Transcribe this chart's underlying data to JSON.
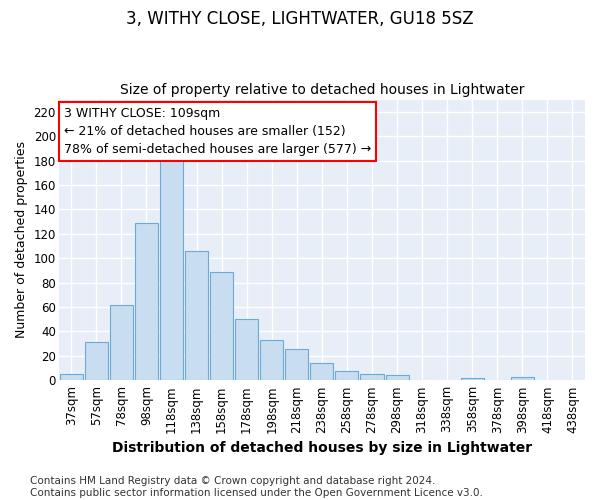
{
  "title": "3, WITHY CLOSE, LIGHTWATER, GU18 5SZ",
  "subtitle": "Size of property relative to detached houses in Lightwater",
  "xlabel": "Distribution of detached houses by size in Lightwater",
  "ylabel": "Number of detached properties",
  "bar_color": "#c9ddf0",
  "bar_edge_color": "#6aaad4",
  "background_color": "#e8eef8",
  "grid_color": "#ffffff",
  "fig_bg_color": "#ffffff",
  "categories": [
    "37sqm",
    "57sqm",
    "78sqm",
    "98sqm",
    "118sqm",
    "138sqm",
    "158sqm",
    "178sqm",
    "198sqm",
    "218sqm",
    "238sqm",
    "258sqm",
    "278sqm",
    "298sqm",
    "318sqm",
    "338sqm",
    "358sqm",
    "378sqm",
    "398sqm",
    "418sqm",
    "438sqm"
  ],
  "values": [
    5,
    31,
    62,
    129,
    181,
    106,
    89,
    50,
    33,
    26,
    14,
    8,
    5,
    4,
    0,
    0,
    2,
    0,
    3,
    0,
    0
  ],
  "annotation_text": "3 WITHY CLOSE: 109sqm\n← 21% of detached houses are smaller (152)\n78% of semi-detached houses are larger (577) →",
  "ylim": [
    0,
    230
  ],
  "yticks": [
    0,
    20,
    40,
    60,
    80,
    100,
    120,
    140,
    160,
    180,
    200,
    220
  ],
  "footnote": "Contains HM Land Registry data © Crown copyright and database right 2024.\nContains public sector information licensed under the Open Government Licence v3.0.",
  "title_fontsize": 12,
  "subtitle_fontsize": 10,
  "xlabel_fontsize": 10,
  "ylabel_fontsize": 9,
  "tick_fontsize": 8.5,
  "annot_fontsize": 9,
  "footnote_fontsize": 7.5
}
